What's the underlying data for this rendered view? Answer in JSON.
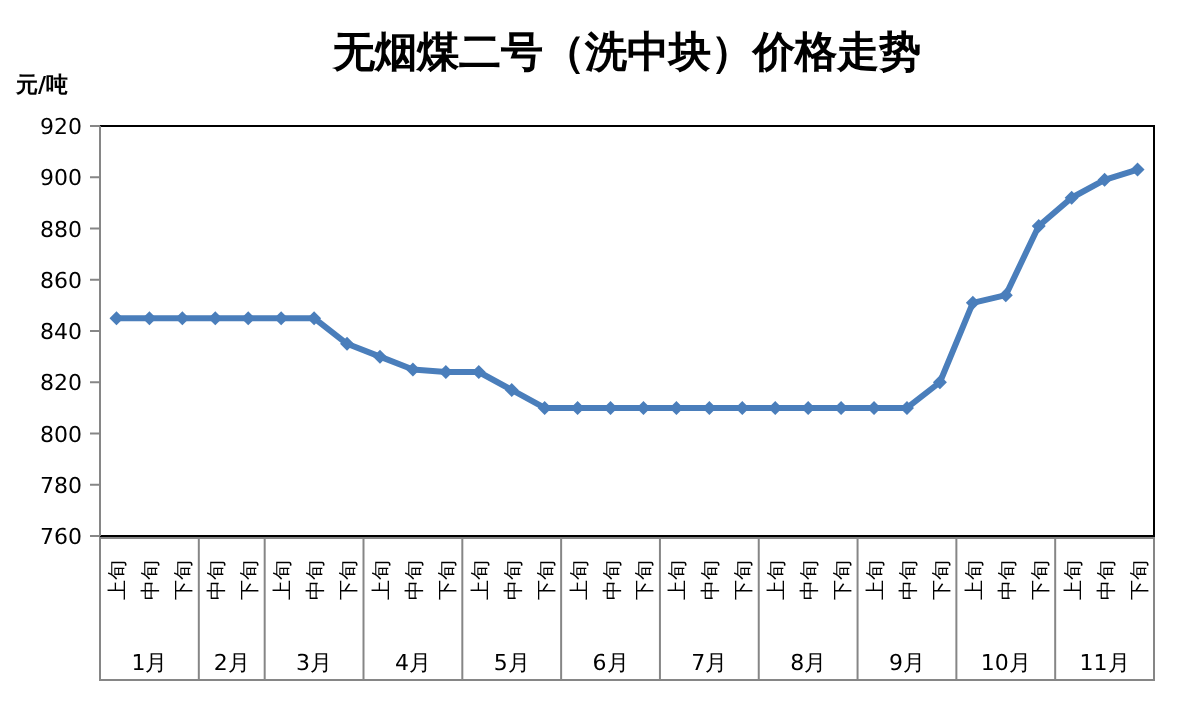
{
  "chart_data": {
    "type": "line",
    "title": "无烟煤二号（洗中块）价格走势",
    "ylabel": "元/吨",
    "categories": [
      "上旬",
      "中旬",
      "下旬",
      "中旬",
      "下旬",
      "上旬",
      "中旬",
      "下旬",
      "上旬",
      "中旬",
      "下旬",
      "上旬",
      "中旬",
      "下旬",
      "上旬",
      "中旬",
      "下旬",
      "上旬",
      "中旬",
      "下旬",
      "上旬",
      "中旬",
      "下旬",
      "上旬",
      "中旬",
      "下旬",
      "上旬",
      "中旬",
      "下旬",
      "上旬",
      "中旬",
      "下旬"
    ],
    "values": [
      845,
      845,
      845,
      845,
      845,
      845,
      845,
      835,
      830,
      825,
      824,
      824,
      817,
      810,
      810,
      810,
      810,
      810,
      810,
      810,
      810,
      810,
      810,
      810,
      810,
      820,
      851,
      854,
      881,
      892,
      899,
      903
    ],
    "color": "#4a7ebb",
    "marker": "diamond",
    "line_style": "solid",
    "grid": false,
    "ylim": [
      760,
      920
    ],
    "yticks": [
      760,
      780,
      800,
      820,
      840,
      860,
      880,
      900,
      920
    ],
    "annotations": [
      "1月",
      "2月",
      "3月",
      "4月",
      "5月",
      "6月",
      "7月",
      "8月",
      "9月",
      "10月",
      "11月"
    ]
  }
}
